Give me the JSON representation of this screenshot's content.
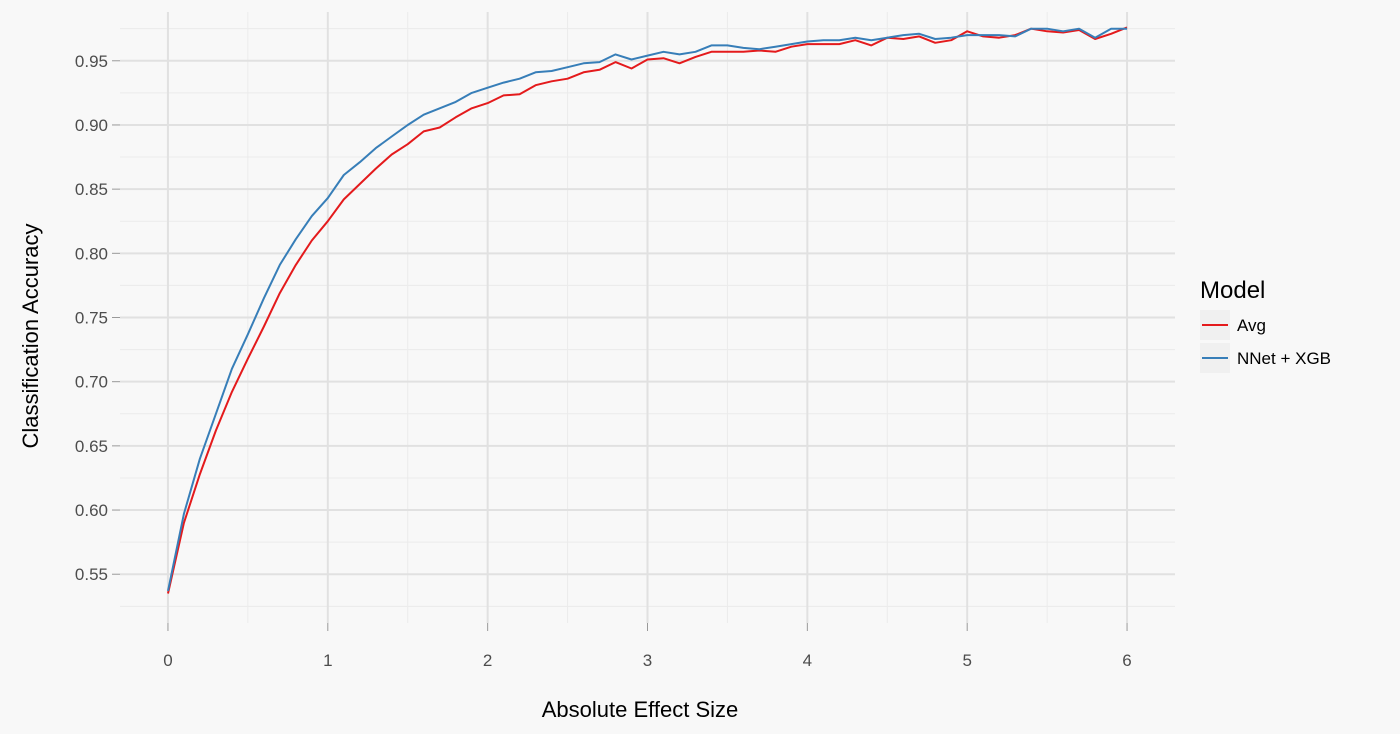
{
  "chart_data": {
    "type": "line",
    "title": "",
    "xlabel": "Absolute Effect Size",
    "ylabel": "Classification Accuracy",
    "xlim": [
      -0.3,
      6.3
    ],
    "ylim": [
      0.512,
      0.988
    ],
    "x_ticks": [
      0,
      1,
      2,
      3,
      4,
      5,
      6
    ],
    "x_tick_labels": [
      "0",
      "1",
      "2",
      "3",
      "4",
      "5",
      "6"
    ],
    "y_ticks": [
      0.55,
      0.6,
      0.65,
      0.7,
      0.75,
      0.8,
      0.85,
      0.9,
      0.95
    ],
    "y_tick_labels": [
      "0.55",
      "0.60",
      "0.65",
      "0.70",
      "0.75",
      "0.80",
      "0.85",
      "0.90",
      "0.95"
    ],
    "grid": true,
    "legend": {
      "title": "Model",
      "position": "right"
    },
    "x": [
      0.0,
      0.1,
      0.2,
      0.3,
      0.4,
      0.5,
      0.6,
      0.7,
      0.8,
      0.9,
      1.0,
      1.1,
      1.2,
      1.3,
      1.4,
      1.5,
      1.6,
      1.7,
      1.8,
      1.9,
      2.0,
      2.1,
      2.2,
      2.3,
      2.4,
      2.5,
      2.6,
      2.7,
      2.8,
      2.9,
      3.0,
      3.1,
      3.2,
      3.3,
      3.4,
      3.5,
      3.6,
      3.7,
      3.8,
      3.9,
      4.0,
      4.1,
      4.2,
      4.3,
      4.4,
      4.5,
      4.6,
      4.7,
      4.8,
      4.9,
      5.0,
      5.1,
      5.2,
      5.3,
      5.4,
      5.5,
      5.6,
      5.7,
      5.8,
      5.9,
      6.0
    ],
    "series": [
      {
        "name": "Avg",
        "color": "#e41a1c",
        "values": [
          0.535,
          0.59,
          0.628,
          0.662,
          0.692,
          0.718,
          0.743,
          0.769,
          0.791,
          0.81,
          0.825,
          0.842,
          0.854,
          0.866,
          0.877,
          0.885,
          0.895,
          0.898,
          0.906,
          0.913,
          0.917,
          0.923,
          0.924,
          0.931,
          0.934,
          0.936,
          0.941,
          0.943,
          0.949,
          0.944,
          0.951,
          0.952,
          0.948,
          0.953,
          0.957,
          0.957,
          0.957,
          0.958,
          0.957,
          0.961,
          0.963,
          0.963,
          0.963,
          0.966,
          0.962,
          0.968,
          0.967,
          0.969,
          0.964,
          0.966,
          0.973,
          0.969,
          0.968,
          0.97,
          0.975,
          0.973,
          0.972,
          0.974,
          0.967,
          0.971,
          0.976
        ]
      },
      {
        "name": "NNet + XGB",
        "color": "#377eb8",
        "values": [
          0.537,
          0.597,
          0.64,
          0.675,
          0.71,
          0.737,
          0.765,
          0.791,
          0.811,
          0.829,
          0.843,
          0.861,
          0.871,
          0.882,
          0.891,
          0.9,
          0.908,
          0.913,
          0.918,
          0.925,
          0.929,
          0.933,
          0.936,
          0.941,
          0.942,
          0.945,
          0.948,
          0.949,
          0.955,
          0.951,
          0.954,
          0.957,
          0.955,
          0.957,
          0.962,
          0.962,
          0.96,
          0.959,
          0.961,
          0.963,
          0.965,
          0.966,
          0.966,
          0.968,
          0.966,
          0.968,
          0.97,
          0.971,
          0.967,
          0.968,
          0.97,
          0.97,
          0.97,
          0.969,
          0.975,
          0.975,
          0.973,
          0.975,
          0.968,
          0.975,
          0.975
        ]
      }
    ]
  }
}
